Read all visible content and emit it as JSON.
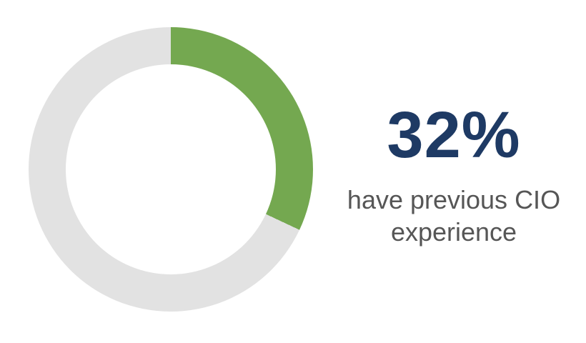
{
  "stat": {
    "value": "32%",
    "label": "have previous CIO experience"
  },
  "chart_data": {
    "type": "pie",
    "subtype": "donut",
    "title": "",
    "categories": [
      "have previous CIO experience",
      "remainder"
    ],
    "values": [
      32,
      68
    ],
    "unit": "percent",
    "start_angle_deg": 0,
    "direction": "clockwise",
    "legend": "none",
    "annotations": [
      "32%",
      "have previous CIO experience"
    ],
    "colors": {
      "filled": "#74a850",
      "remainder": "#e2e2e2"
    }
  },
  "colors": {
    "value_text": "#1e3a64",
    "label_text": "#565656",
    "background": "#ffffff"
  }
}
